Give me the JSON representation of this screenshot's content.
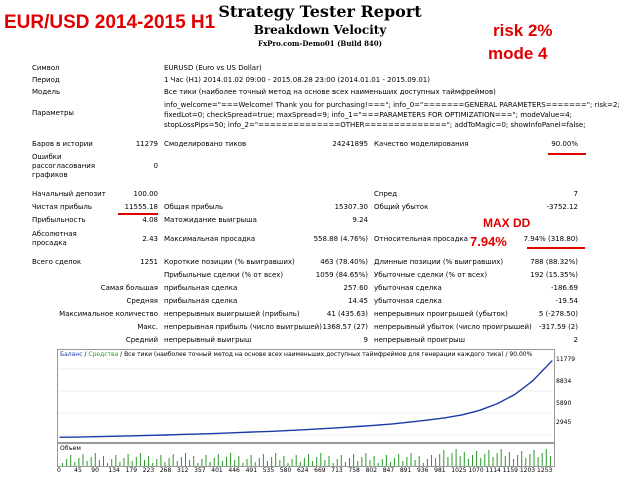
{
  "header": {
    "title": "Strategy Tester Report",
    "subtitle": "Breakdown Velocity",
    "server": "FxPro.com-Demo01 (Build 840)"
  },
  "annotations": {
    "pair_period": "EUR/USD 2014-2015 H1",
    "risk": "risk 2%",
    "mode": "mode 4",
    "maxdd_title": "MAX DD",
    "maxdd_value": "7.94%",
    "accent_color": "#e00000"
  },
  "info": {
    "symbol_label": "Символ",
    "symbol_value": "EURUSD (Euro vs US Dollar)",
    "period_label": "Период",
    "period_value": "1 Час (H1) 2014.01.02 09:00 - 2015.08.28 23:00 (2014.01.01 - 2015.09.01)",
    "model_label": "Модель",
    "model_value": "Все тики (наиболее точный метод на основе всех наименьших доступных таймфреймов)",
    "params_label": "Параметры",
    "params_line1": "info_welcome=\"===Welcome! Thank you for purchasing!===\"; info_0=\"=======GENERAL PARAMETERS=======\"; risk=2;",
    "params_line2": "fixedLot=0; checkSpread=true; maxSpread=9; info_1=\"===PARAMETERS FOR OPTIMIZATION===\"; modeValue=4;",
    "params_line3": "stopLossPips=50; info_2=\"==============OTHER==============\"; addToMagic=0; showInfoPanel=false;"
  },
  "stats": {
    "bars_label": "Баров в истории",
    "bars_value": "11279",
    "ticks_label": "Смоделировано тиков",
    "ticks_value": "24241895",
    "quality_label": "Качество моделирования",
    "quality_value": "90.00%",
    "errors_label_1": "Ошибки",
    "errors_label_2": "рассогласования",
    "errors_label_3": "графиков",
    "errors_value": "0",
    "deposit_label": "Начальный депозит",
    "deposit_value": "100.00",
    "spread_label": "Спред",
    "spread_value": "7",
    "net_profit_label": "Чистая прибыль",
    "net_profit_value": "11555.18",
    "gross_profit_label": "Общая прибыль",
    "gross_profit_value": "15307.30",
    "gross_loss_label": "Общий убыток",
    "gross_loss_value": "-3752.12",
    "pf_label": "Прибыльность",
    "pf_value": "4.08",
    "payoff_label": "Матожидание выигрыша",
    "payoff_value": "9.24",
    "abs_dd_label_1": "Абсолютная",
    "abs_dd_label_2": "просадка",
    "abs_dd_value": "2.43",
    "max_dd_label": "Максимальная просадка",
    "max_dd_value": "558.88 (4.76%)",
    "rel_dd_label": "Относительная просадка",
    "rel_dd_value": "7.94% (318.80)",
    "total_trades_label": "Всего сделок",
    "total_trades_value": "1251",
    "short_label": "Короткие позиции (% выигравших)",
    "short_value": "463 (78.40%)",
    "long_label": "Длинные позиции (% выигравших)",
    "long_value": "788 (88.32%)",
    "profit_trades_label": "Прибыльные сделки (% от всех)",
    "profit_trades_value": "1059 (84.65%)",
    "loss_trades_label": "Убыточные сделки (% от всех)",
    "loss_trades_value": "192 (15.35%)",
    "largest_label": "Самая большая",
    "largest_profit_label": "прибыльная сделка",
    "largest_profit_value": "257.60",
    "largest_loss_label": "убыточная сделка",
    "largest_loss_value": "-186.69",
    "average_label": "Средняя",
    "avg_profit_label": "прибыльная сделка",
    "avg_profit_value": "14.45",
    "avg_loss_label": "убыточная сделка",
    "avg_loss_value": "-19.54",
    "max_count_label": "Максимальное количество",
    "max_cons_wins_label": "непрерывных выигрышей (прибыль)",
    "max_cons_wins_value": "41 (435.63)",
    "max_cons_losses_label": "непрерывных проигрышей (убыток)",
    "max_cons_losses_value": "5 (-278.50)",
    "max_label": "Макс.",
    "max_cons_profit_label": "непрерывная прибыль (число выигрышей)",
    "max_cons_profit_value": "1368.57 (27)",
    "max_cons_loss_label": "непрерывный убыток (число проигрышей)",
    "max_cons_loss_value": "-317.59 (2)",
    "avg_cons_label": "Средний",
    "avg_cons_wins_label": "непрерывный выигрыш",
    "avg_cons_wins_value": "9",
    "avg_cons_losses_label": "непрерывный проигрыш",
    "avg_cons_losses_value": "2"
  },
  "chart": {
    "legend_balance": "Баланс",
    "legend_sep": " / ",
    "legend_equity": "Средства",
    "legend_rest": " / Все тики (наиболее точный метод на основе всех наименьших доступных таймфреймов для генерации каждого тика) / 90.00%",
    "y_ticks": [
      "11779",
      "8834",
      "5890",
      "2945"
    ],
    "volume_label": "Объем",
    "x_ticks": [
      "0",
      "45",
      "90",
      "134",
      "179",
      "223",
      "268",
      "312",
      "357",
      "401",
      "446",
      "491",
      "535",
      "580",
      "624",
      "669",
      "713",
      "758",
      "802",
      "847",
      "891",
      "936",
      "981",
      "1025",
      "1070",
      "1114",
      "1159",
      "1203",
      "1253"
    ]
  },
  "chart_data": {
    "type": "line",
    "title": "",
    "xlabel": "",
    "ylabel": "",
    "x": [
      0,
      45,
      90,
      134,
      179,
      223,
      268,
      312,
      357,
      401,
      446,
      491,
      535,
      580,
      624,
      669,
      713,
      758,
      802,
      847,
      891,
      936,
      981,
      1025,
      1070,
      1114,
      1159,
      1203,
      1253
    ],
    "ylim": [
      0,
      11779
    ],
    "series": [
      {
        "name": "Баланс",
        "values": [
          100,
          140,
          200,
          260,
          320,
          390,
          460,
          540,
          620,
          700,
          800,
          900,
          1000,
          1120,
          1250,
          1400,
          1560,
          1730,
          1920,
          2130,
          2400,
          2700,
          3050,
          3500,
          4200,
          5200,
          6600,
          8600,
          11655
        ]
      }
    ]
  }
}
